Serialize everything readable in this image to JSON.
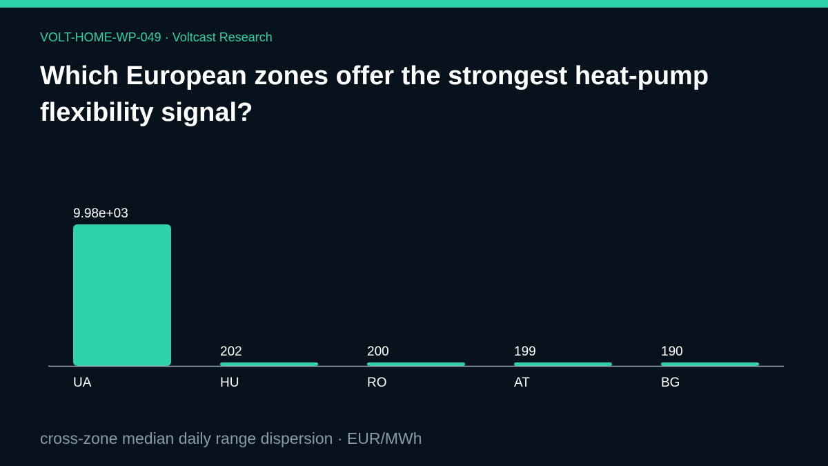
{
  "header": {
    "kicker": "VOLT-HOME-WP-049 · Voltcast Research",
    "title": "Which European zones offer the strongest heat-pump flexibility signal?"
  },
  "footer": {
    "note": "cross-zone median daily range dispersion · EUR/MWh"
  },
  "colors": {
    "background": "#08121c",
    "accent": "#2fd1a8",
    "title": "#ffffff",
    "axis": "#9aa5b1",
    "label": "#ffffff",
    "muted": "#8c9aa7"
  },
  "chart_data": {
    "type": "bar",
    "categories": [
      "UA",
      "HU",
      "RO",
      "AT",
      "BG"
    ],
    "values": [
      9980,
      202,
      200,
      199,
      190
    ],
    "value_labels": [
      "9.98e+03",
      "202",
      "200",
      "199",
      "190"
    ],
    "title": "",
    "xlabel": "",
    "ylabel": "",
    "ylim": [
      0,
      9980
    ],
    "grid": false,
    "legend": "none"
  }
}
